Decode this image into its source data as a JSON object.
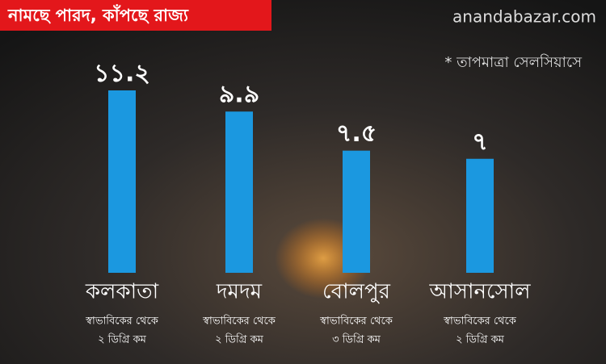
{
  "chart_data": {
    "type": "bar",
    "title": "নামছে পারদ, কাঁপছে রাজ্য",
    "source": "anandabazar.com",
    "subtitle": "* তাপমাত্রা সেলসিয়াসে",
    "categories": [
      "কলকাতা",
      "দমদম",
      "বোলপুর",
      "আসানসোল"
    ],
    "values": [
      11.2,
      9.9,
      7.5,
      7
    ],
    "value_labels": [
      "১১.২",
      "৯.৯",
      "৭.৫",
      "৭"
    ],
    "notes": [
      [
        "স্বাভাবিকের থেকে",
        "২ ডিগ্রি কম"
      ],
      [
        "স্বাভাবিকের থেকে",
        "২ ডিগ্রি কম"
      ],
      [
        "স্বাভাবিকের থেকে",
        "৩ ডিগ্রি কম"
      ],
      [
        "স্বাভাবিকের থেকে",
        "২ ডিগ্রি কম"
      ]
    ],
    "color": "#1b98e0"
  }
}
